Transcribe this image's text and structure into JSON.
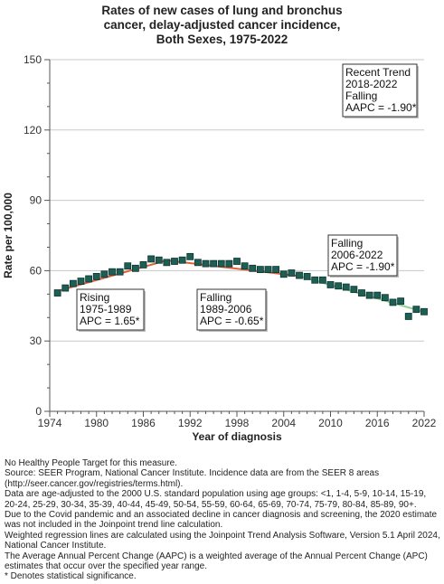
{
  "chart_data": {
    "type": "scatter",
    "title": [
      "Rates of new cases of lung and bronchus",
      "cancer, delay-adjusted cancer incidence,",
      "Both Sexes,  1975-2022"
    ],
    "xlabel": "Year of diagnosis",
    "ylabel": "Rate per 100,000",
    "xlim": [
      1974,
      2022
    ],
    "ylim": [
      0,
      150
    ],
    "xticks": [
      1974,
      1980,
      1986,
      1992,
      1998,
      2004,
      2010,
      2016,
      2022
    ],
    "yticks": [
      0,
      30,
      60,
      90,
      120,
      150
    ],
    "grid": true,
    "observed": {
      "x": [
        1975,
        1976,
        1977,
        1978,
        1979,
        1980,
        1981,
        1982,
        1983,
        1984,
        1985,
        1986,
        1987,
        1988,
        1989,
        1990,
        1991,
        1992,
        1993,
        1994,
        1995,
        1996,
        1997,
        1998,
        1999,
        2000,
        2001,
        2002,
        2003,
        2004,
        2005,
        2006,
        2007,
        2008,
        2009,
        2010,
        2011,
        2012,
        2013,
        2014,
        2015,
        2016,
        2017,
        2018,
        2019,
        2020,
        2021,
        2022
      ],
      "y": [
        50.5,
        52.6,
        54.5,
        55.5,
        56.5,
        57.5,
        58.5,
        59.5,
        59.5,
        62.0,
        61.0,
        62.5,
        65.0,
        64.5,
        63.5,
        64.0,
        64.5,
        66.0,
        63.5,
        63.0,
        63.0,
        63.0,
        63.0,
        64.0,
        62.0,
        61.0,
        60.5,
        60.5,
        60.5,
        58.5,
        59.0,
        58.0,
        57.5,
        56.0,
        56.0,
        54.0,
        53.5,
        53.0,
        52.0,
        50.5,
        49.5,
        49.5,
        48.5,
        46.5,
        47.0,
        40.5,
        43.5,
        42.5
      ]
    },
    "segments": [
      {
        "label": [
          "Rising",
          "1975-1989",
          "APC =  1.65*"
        ],
        "color": "#e0603a",
        "x": [
          1975,
          1989
        ],
        "y": [
          51.3,
          64.4
        ]
      },
      {
        "label": [
          "Falling",
          "1989-2006",
          "APC = -0.65*"
        ],
        "color": "#e0603a",
        "x": [
          1989,
          2006
        ],
        "y": [
          64.4,
          57.7
        ]
      },
      {
        "label": [
          "Falling",
          "2006-2022",
          "APC = -1.90*"
        ],
        "color": "#8fcf8f",
        "x": [
          2006,
          2022
        ],
        "y": [
          57.7,
          42.4
        ]
      }
    ],
    "recent_trend": [
      "Recent Trend",
      "2018-2022",
      "Falling",
      "AAPC = -1.90*"
    ],
    "marker_color": "#1d5f55",
    "marker_edge": "#0d3530"
  },
  "notes": [
    "No Healthy People Target for this measure.",
    "Source: SEER Program, National Cancer Institute. Incidence data are from the SEER 8 areas (http://seer.cancer.gov/registries/terms.html).",
    "Data are age-adjusted to the 2000 U.S. standard population using age groups: <1, 1-4, 5-9, 10-14, 15-19, 20-24, 25-29, 30-34, 35-39, 40-44, 45-49, 50-54, 55-59, 60-64, 65-69, 70-74, 75-79, 80-84, 85-89, 90+.",
    "Due to the Covid pandemic and an associated decline in cancer diagnosis and screening, the 2020 estimate was not included in the Joinpoint trend line calculation.",
    "Weighted regression lines are calculated using the Joinpoint Trend Analysis Software, Version 5.1 April 2024, National Cancer Institute.",
    "The Average Annual Percent Change (AAPC) is a weighted average of the Annual Percent Change (APC) estimates that occur over the specified year range.",
    "* Denotes statistical significance."
  ]
}
